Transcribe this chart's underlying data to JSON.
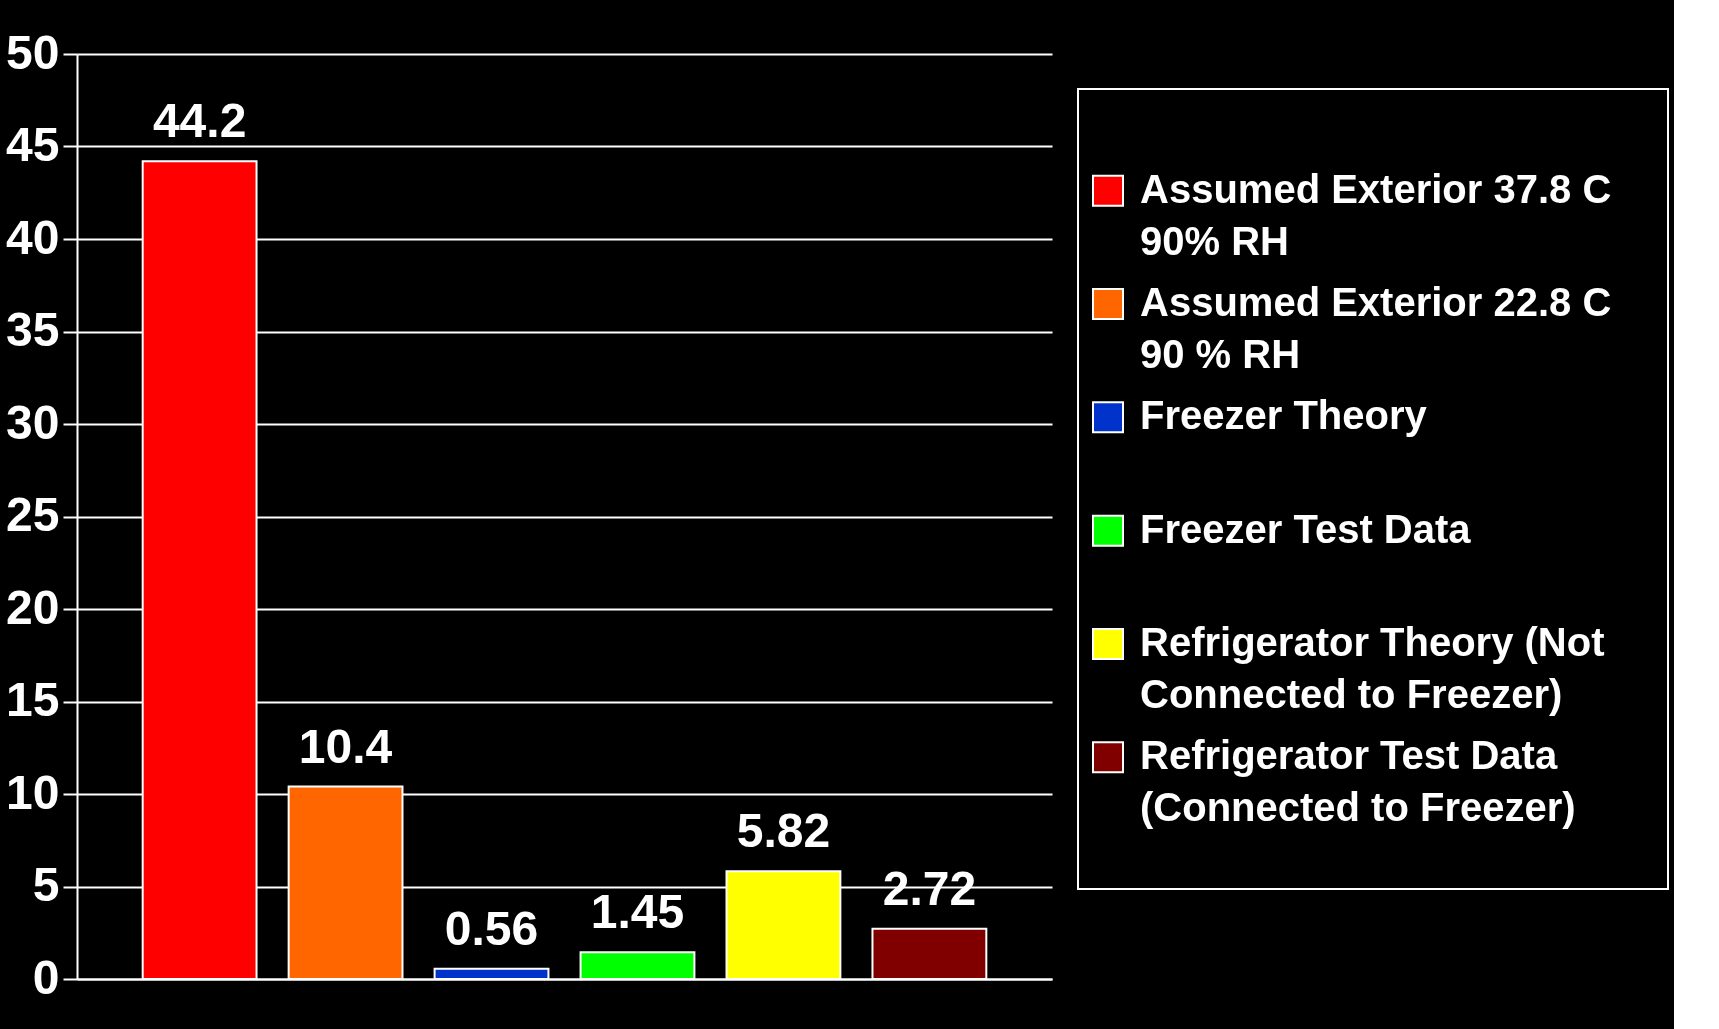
{
  "chart_data": {
    "type": "bar",
    "categories": [
      null
    ],
    "series": [
      {
        "name": "Assumed Exterior 37.8 C 90% RH",
        "color": "#ff0000",
        "values": [
          44.2
        ]
      },
      {
        "name": "Assumed Exterior 22.8 C 90 % RH",
        "color": "#ff6600",
        "values": [
          10.4
        ]
      },
      {
        "name": "Freezer Theory",
        "color": "#0033cc",
        "values": [
          0.56
        ]
      },
      {
        "name": "Freezer Test Data",
        "color": "#00ff00",
        "values": [
          1.45
        ]
      },
      {
        "name": "Refrigerator Theory (Not Connected to Freezer)",
        "color": "#ffff00",
        "values": [
          5.82
        ]
      },
      {
        "name": "Refrigerator Test Data (Connected to Freezer)",
        "color": "#800000",
        "values": [
          2.72
        ]
      }
    ],
    "ylim": [
      0,
      50
    ],
    "yticks": [
      0,
      5,
      10,
      15,
      20,
      25,
      30,
      35,
      40,
      45,
      50
    ],
    "grid": "y",
    "legend": "right",
    "data_labels": true
  }
}
